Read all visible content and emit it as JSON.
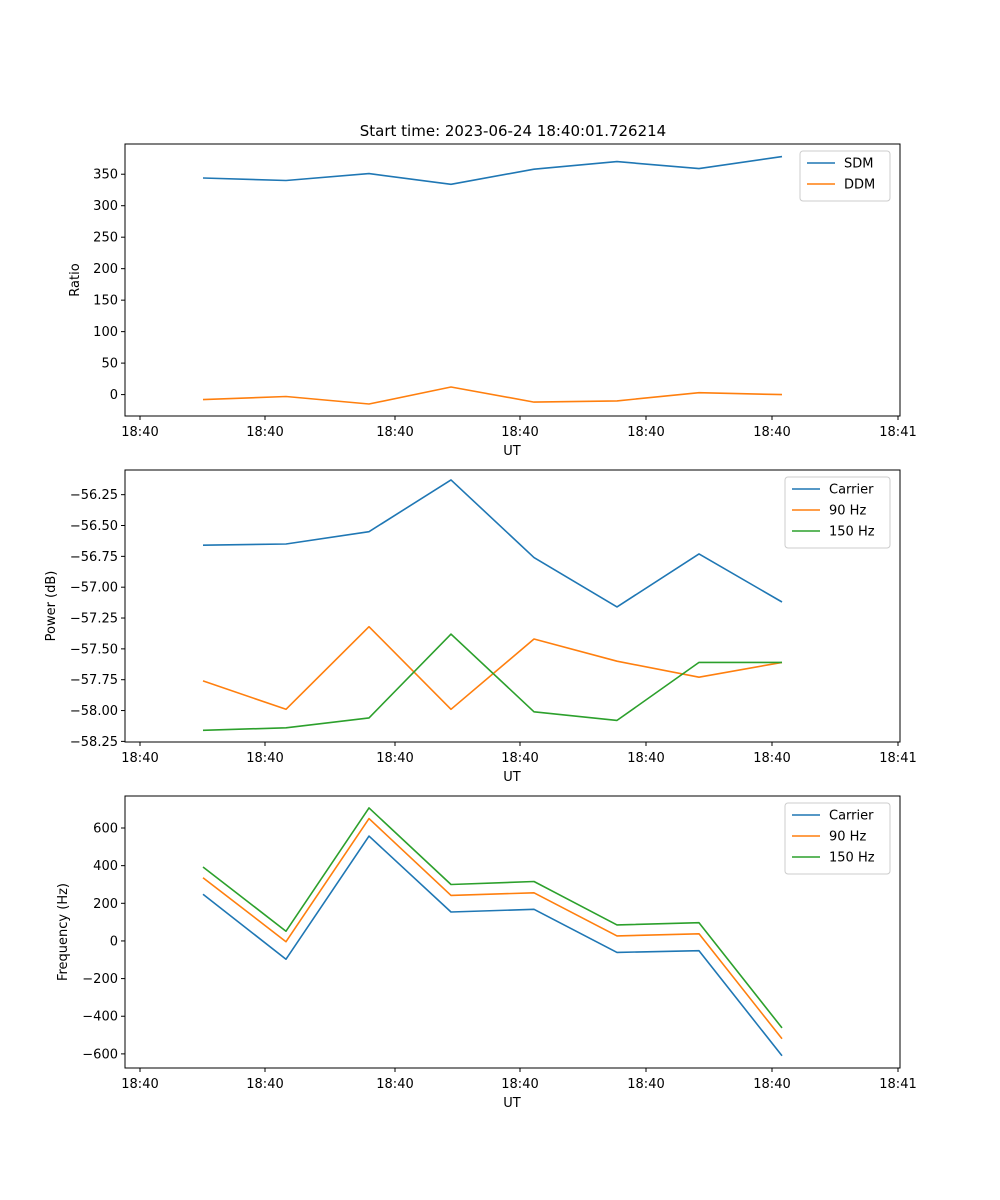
{
  "figure": {
    "title": "Start time: 2023-06-24 18:40:01.726214"
  },
  "chart_data": [
    {
      "type": "line",
      "xlabel": "UT",
      "ylabel": "Ratio",
      "xtick_labels": [
        "18:40",
        "18:40",
        "18:40",
        "18:40",
        "18:40",
        "18:40",
        "18:40",
        "18:41"
      ],
      "yticks": [
        0,
        50,
        100,
        150,
        200,
        250,
        300,
        350
      ],
      "ytick_labels": [
        "0",
        "50",
        "100",
        "150",
        "200",
        "250",
        "300",
        "350"
      ],
      "ylim": [
        -34,
        398
      ],
      "grid": false,
      "legend": "upper right",
      "x": [
        1,
        2,
        3,
        4,
        5,
        6,
        7,
        8
      ],
      "series": [
        {
          "name": "SDM",
          "color": "#1f77b4",
          "values": [
            344,
            340,
            351,
            334,
            358,
            370,
            359,
            378
          ]
        },
        {
          "name": "DDM",
          "color": "#ff7f0e",
          "values": [
            -8,
            -3,
            -15,
            12,
            -12,
            -10,
            3,
            0
          ]
        }
      ]
    },
    {
      "type": "line",
      "xlabel": "UT",
      "ylabel": "Power (dB)",
      "xtick_labels": [
        "18:40",
        "18:40",
        "18:40",
        "18:40",
        "18:40",
        "18:40",
        "18:40",
        "18:41"
      ],
      "yticks": [
        -58.25,
        -58.0,
        -57.75,
        -57.5,
        -57.25,
        -57.0,
        -56.75,
        -56.5,
        -56.25
      ],
      "ytick_labels": [
        "−58.25",
        "−58.00",
        "−57.75",
        "−57.50",
        "−57.25",
        "−57.00",
        "−56.75",
        "−56.50",
        "−56.25"
      ],
      "ylim": [
        -58.255,
        -56.05
      ],
      "grid": false,
      "legend": "upper right",
      "x": [
        1,
        2,
        3,
        4,
        5,
        6,
        7,
        8
      ],
      "series": [
        {
          "name": "Carrier",
          "color": "#1f77b4",
          "values": [
            -56.66,
            -56.65,
            -56.55,
            -56.13,
            -56.76,
            -57.16,
            -56.73,
            -57.12
          ]
        },
        {
          "name": "90 Hz",
          "color": "#ff7f0e",
          "values": [
            -57.76,
            -57.99,
            -57.32,
            -57.99,
            -57.42,
            -57.6,
            -57.73,
            -57.61
          ]
        },
        {
          "name": "150 Hz",
          "color": "#2ca02c",
          "values": [
            -58.16,
            -58.14,
            -58.06,
            -57.38,
            -58.01,
            -58.08,
            -57.61,
            -57.61
          ]
        }
      ]
    },
    {
      "type": "line",
      "xlabel": "UT",
      "ylabel": "Frequency (Hz)",
      "xtick_labels": [
        "18:40",
        "18:40",
        "18:40",
        "18:40",
        "18:40",
        "18:40",
        "18:40",
        "18:41"
      ],
      "yticks": [
        -600,
        -400,
        -200,
        0,
        200,
        400,
        600
      ],
      "ytick_labels": [
        "−600",
        "−400",
        "−200",
        "0",
        "200",
        "400",
        "600"
      ],
      "ylim": [
        -675,
        770
      ],
      "grid": false,
      "legend": "upper right",
      "x": [
        1,
        2,
        3,
        4,
        5,
        6,
        7,
        8
      ],
      "series": [
        {
          "name": "Carrier",
          "color": "#1f77b4",
          "values": [
            248,
            -97,
            557,
            154,
            168,
            -61,
            -52,
            -610
          ]
        },
        {
          "name": "90 Hz",
          "color": "#ff7f0e",
          "values": [
            336,
            -4,
            650,
            242,
            256,
            27,
            38,
            -520
          ]
        },
        {
          "name": "150 Hz",
          "color": "#2ca02c",
          "values": [
            393,
            52,
            707,
            300,
            316,
            85,
            97,
            -462
          ]
        }
      ]
    }
  ]
}
